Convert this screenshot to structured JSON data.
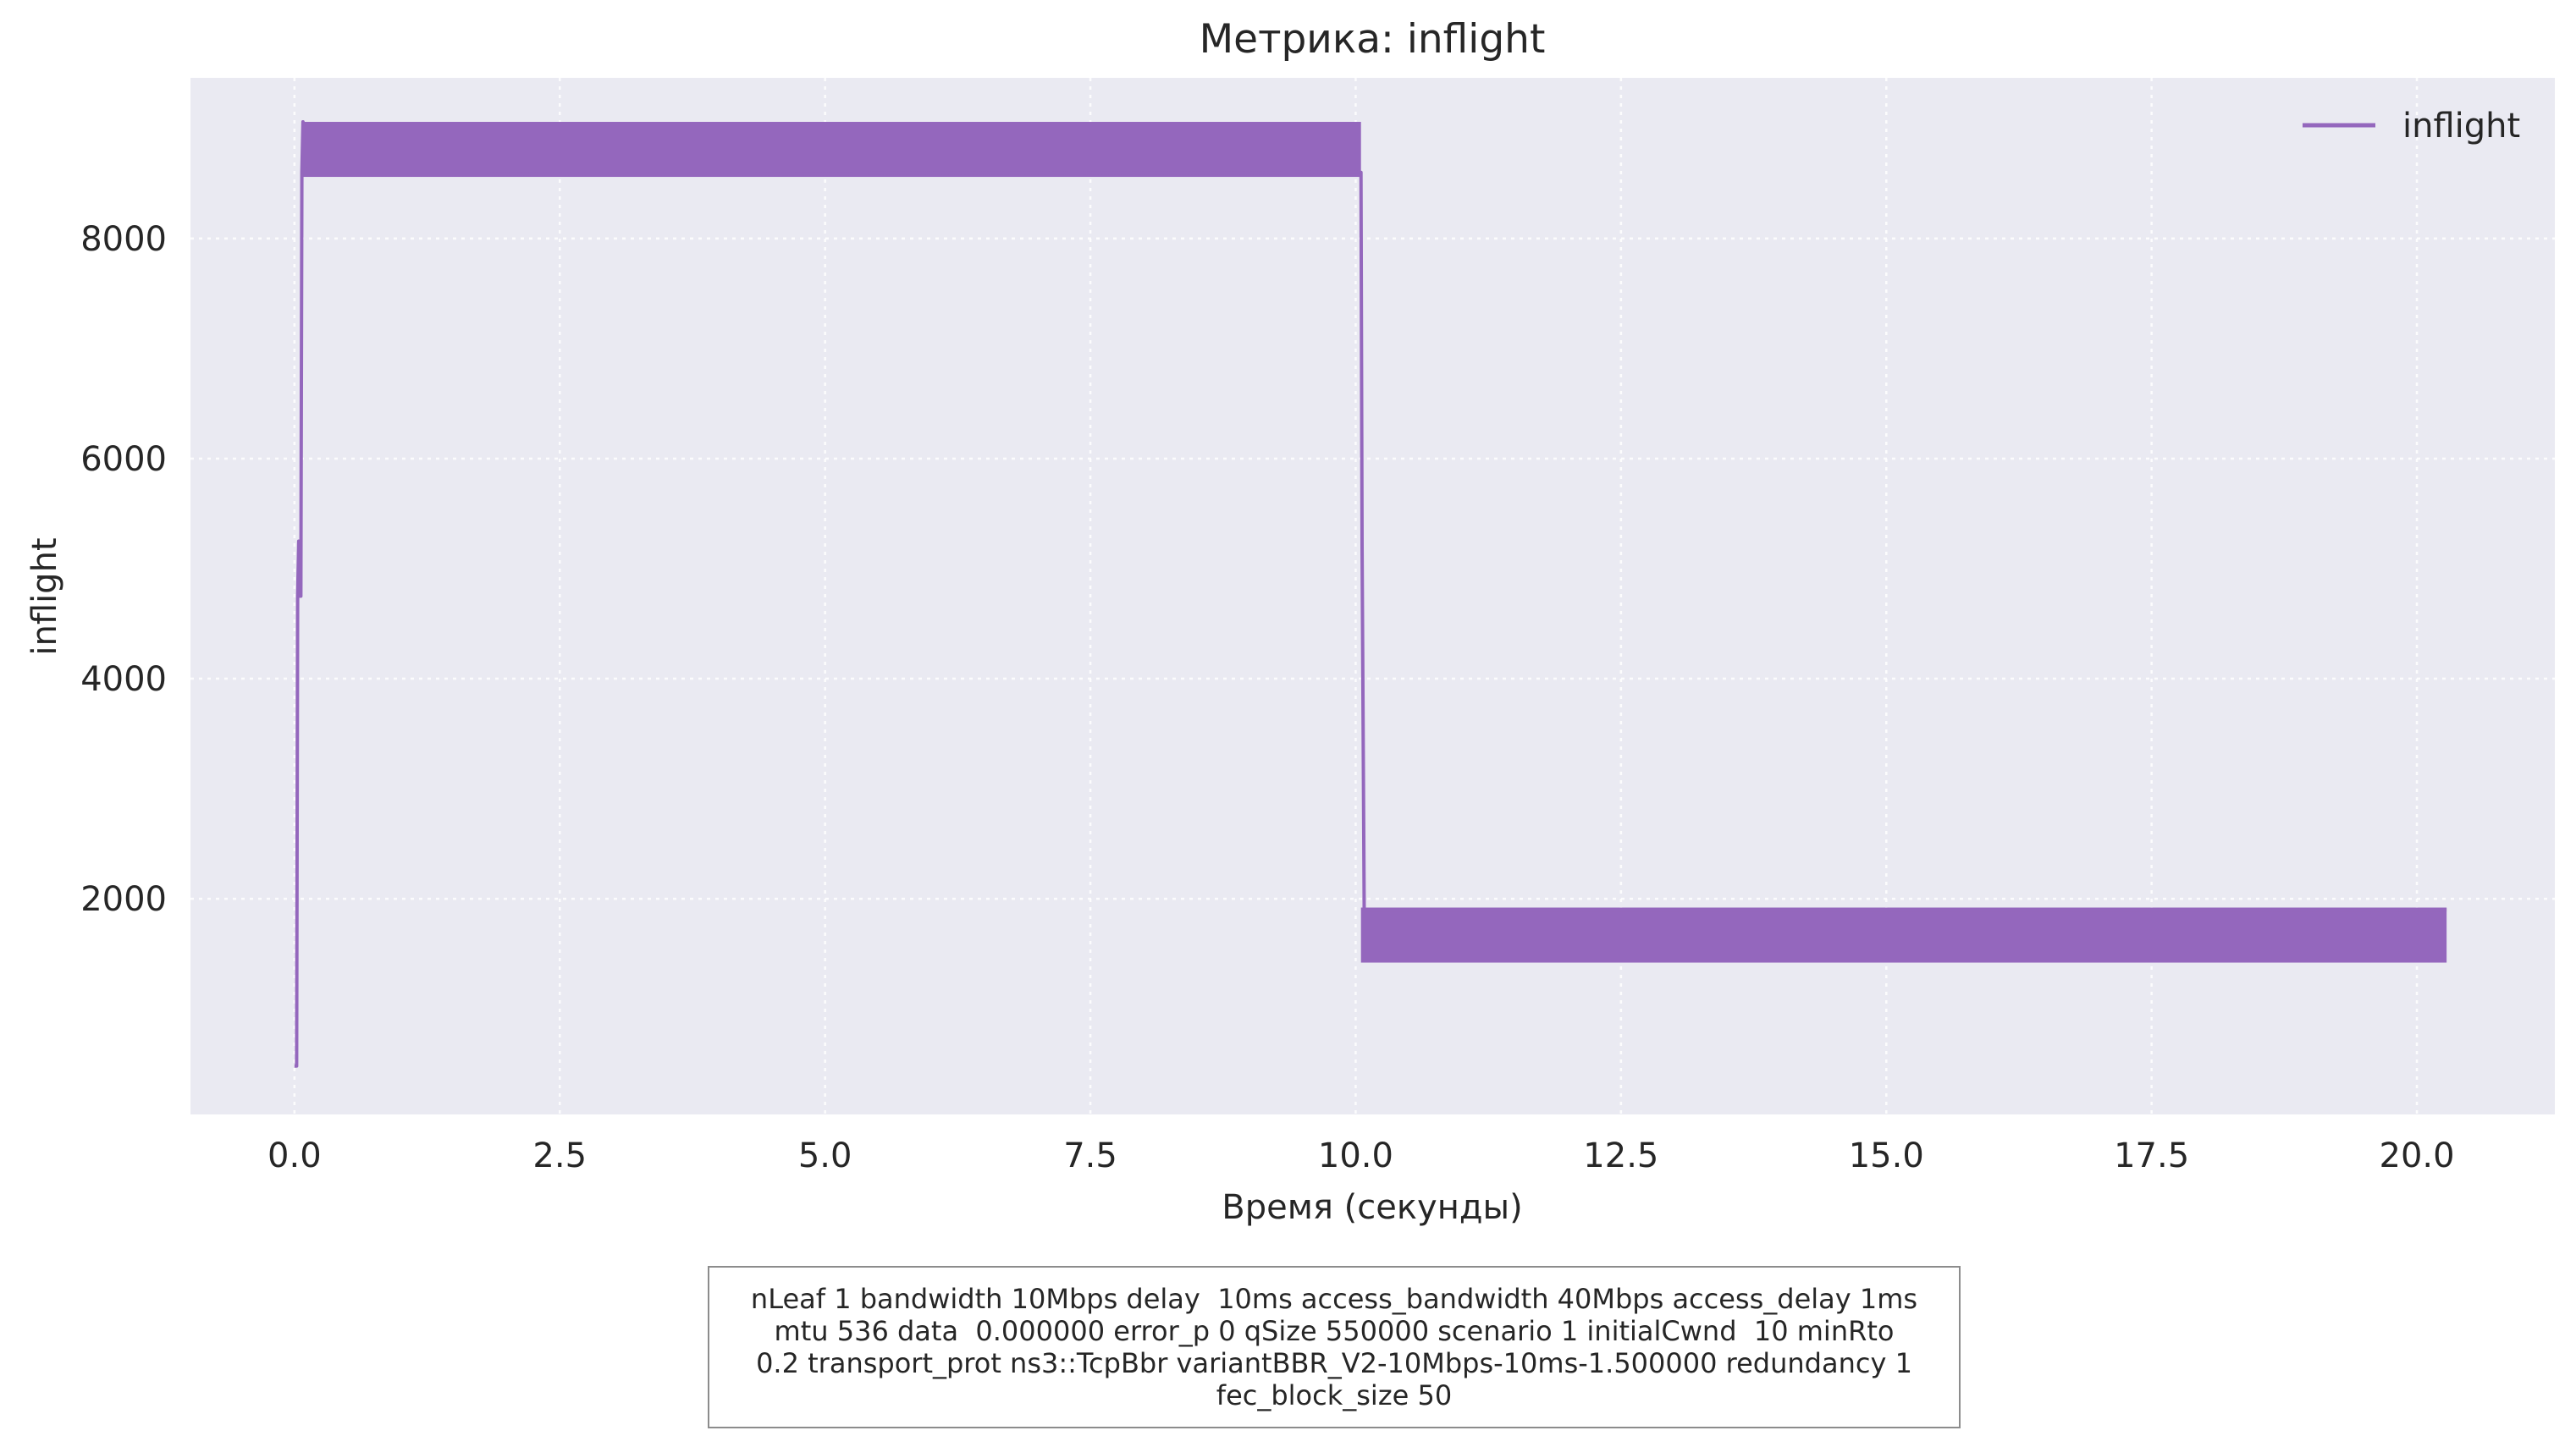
{
  "chart_data": {
    "type": "line",
    "title": "Метрика: inflight",
    "xlabel": "Время (секунды)",
    "ylabel": "inflight",
    "xlim": [
      -0.98,
      21.3
    ],
    "ylim": [
      40,
      9460
    ],
    "x_ticks": [
      0.0,
      2.5,
      5.0,
      7.5,
      10.0,
      12.5,
      15.0,
      17.5,
      20.0
    ],
    "x_tick_labels": [
      "0.0",
      "2.5",
      "5.0",
      "7.5",
      "10.0",
      "12.5",
      "15.0",
      "17.5",
      "20.0"
    ],
    "y_ticks": [
      2000,
      4000,
      6000,
      8000
    ],
    "y_tick_labels": [
      "2000",
      "4000",
      "6000",
      "8000"
    ],
    "grid": true,
    "legend_position": "top-right",
    "series": [
      {
        "name": "inflight",
        "color": "#9467bd",
        "x": [
          0.0,
          0.02,
          0.03,
          0.04,
          0.05,
          0.06,
          0.07,
          0.08,
          0.1,
          10.05,
          10.06,
          10.08,
          20.28
        ],
        "y": [
          480,
          480,
          4750,
          5250,
          4750,
          4750,
          8600,
          9060,
          8580,
          8600,
          5200,
          1900,
          1900
        ],
        "bands": [
          {
            "x_start": 0.07,
            "x_end": 10.05,
            "y_min": 8560,
            "y_max": 9060
          },
          {
            "x_start": 10.05,
            "x_end": 20.28,
            "y_min": 1420,
            "y_max": 1920
          }
        ]
      }
    ]
  },
  "caption": {
    "lines": [
      "nLeaf 1 bandwidth 10Mbps delay  10ms access_bandwidth 40Mbps access_delay 1ms",
      "mtu 536 data  0.000000 error_p 0 qSize 550000 scenario 1 initialCwnd  10 minRto",
      "0.2 transport_prot ns3::TcpBbr variantBBR_V2-10Mbps-10ms-1.500000 redundancy 1",
      "fec_block_size 50"
    ]
  }
}
